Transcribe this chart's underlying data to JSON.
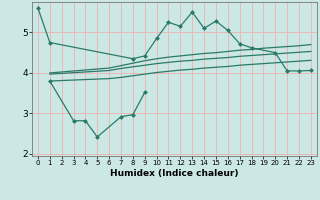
{
  "xlabel": "Humidex (Indice chaleur)",
  "bg_color": "#cce8e4",
  "grid_color": "#e8b8b8",
  "line_color": "#2a7a6a",
  "line1_x": [
    0,
    1,
    8,
    9,
    10,
    11,
    12,
    13,
    14,
    15,
    16,
    17,
    18,
    20,
    21,
    22,
    23
  ],
  "line1_y": [
    5.6,
    4.75,
    4.35,
    4.42,
    4.85,
    5.25,
    5.15,
    5.5,
    5.1,
    5.28,
    5.05,
    4.72,
    4.62,
    4.5,
    4.05,
    4.05,
    4.06
  ],
  "line2_x": [
    1,
    6,
    7,
    8,
    9,
    10,
    11,
    12,
    13,
    14,
    15,
    16,
    17,
    18,
    19,
    20,
    21,
    22,
    23
  ],
  "line2_y": [
    4.0,
    4.12,
    4.18,
    4.24,
    4.3,
    4.35,
    4.39,
    4.42,
    4.45,
    4.48,
    4.5,
    4.53,
    4.56,
    4.58,
    4.61,
    4.63,
    4.65,
    4.67,
    4.7
  ],
  "line3_x": [
    1,
    6,
    7,
    8,
    9,
    10,
    11,
    12,
    13,
    14,
    15,
    16,
    17,
    18,
    19,
    20,
    21,
    22,
    23
  ],
  "line3_y": [
    3.97,
    4.06,
    4.11,
    4.15,
    4.19,
    4.23,
    4.26,
    4.29,
    4.31,
    4.34,
    4.36,
    4.38,
    4.41,
    4.43,
    4.45,
    4.47,
    4.49,
    4.51,
    4.53
  ],
  "line4_x": [
    1,
    6,
    7,
    8,
    9,
    10,
    11,
    12,
    13,
    14,
    15,
    16,
    17,
    18,
    19,
    20,
    21,
    22,
    23
  ],
  "line4_y": [
    3.8,
    3.86,
    3.89,
    3.93,
    3.97,
    4.01,
    4.04,
    4.07,
    4.09,
    4.12,
    4.14,
    4.16,
    4.19,
    4.21,
    4.23,
    4.25,
    4.27,
    4.29,
    4.31
  ],
  "line5_x": [
    1,
    3,
    4,
    5,
    7,
    8,
    9
  ],
  "line5_y": [
    3.8,
    2.82,
    2.82,
    2.42,
    2.92,
    2.97,
    3.52
  ],
  "ylim": [
    1.95,
    5.75
  ],
  "yticks": [
    2,
    3,
    4,
    5
  ],
  "xlim": [
    -0.5,
    23.5
  ],
  "xticks": [
    0,
    1,
    2,
    3,
    4,
    5,
    6,
    7,
    8,
    9,
    10,
    11,
    12,
    13,
    14,
    15,
    16,
    17,
    18,
    19,
    20,
    21,
    22,
    23
  ]
}
